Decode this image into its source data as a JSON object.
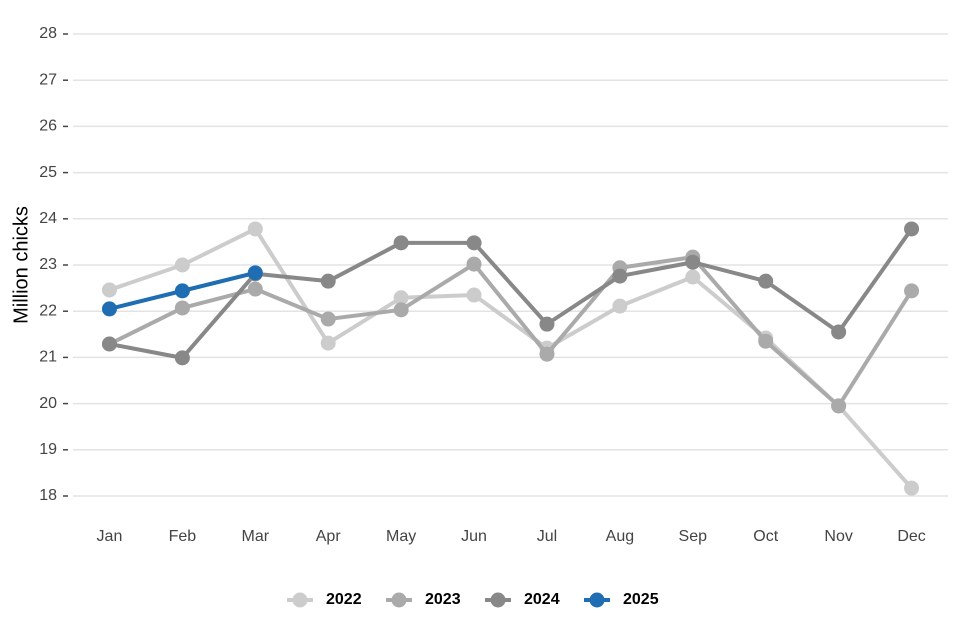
{
  "chart_data": {
    "type": "line",
    "y_label": "Million chicks",
    "categories": [
      "Jan",
      "Feb",
      "Mar",
      "Apr",
      "May",
      "Jun",
      "Jul",
      "Aug",
      "Sep",
      "Oct",
      "Nov",
      "Dec"
    ],
    "series": [
      {
        "name": "2022",
        "color": "#cccccc",
        "values": [
          22.46,
          23.0,
          23.78,
          21.31,
          22.29,
          22.35,
          21.2,
          22.11,
          22.74,
          21.42,
          19.95,
          18.17
        ]
      },
      {
        "name": "2023",
        "color": "#aaaaaa",
        "values": [
          21.29,
          22.07,
          22.48,
          21.83,
          22.03,
          23.02,
          21.07,
          22.94,
          23.17,
          21.35,
          19.95,
          22.44
        ]
      },
      {
        "name": "2024",
        "color": "#888888",
        "values": [
          21.29,
          20.99,
          22.81,
          22.65,
          23.48,
          23.48,
          21.72,
          22.76,
          23.06,
          22.65,
          21.55,
          23.78
        ]
      },
      {
        "name": "2025",
        "color": "#1f6db3",
        "values": [
          22.05,
          22.44,
          22.83,
          null,
          null,
          null,
          null,
          null,
          null,
          null,
          null,
          null
        ]
      }
    ],
    "ylim": [
      18,
      28
    ],
    "yticks": [
      18,
      19,
      20,
      21,
      22,
      23,
      24,
      25,
      26,
      27,
      28
    ],
    "grid": true,
    "legend": "bottom"
  }
}
